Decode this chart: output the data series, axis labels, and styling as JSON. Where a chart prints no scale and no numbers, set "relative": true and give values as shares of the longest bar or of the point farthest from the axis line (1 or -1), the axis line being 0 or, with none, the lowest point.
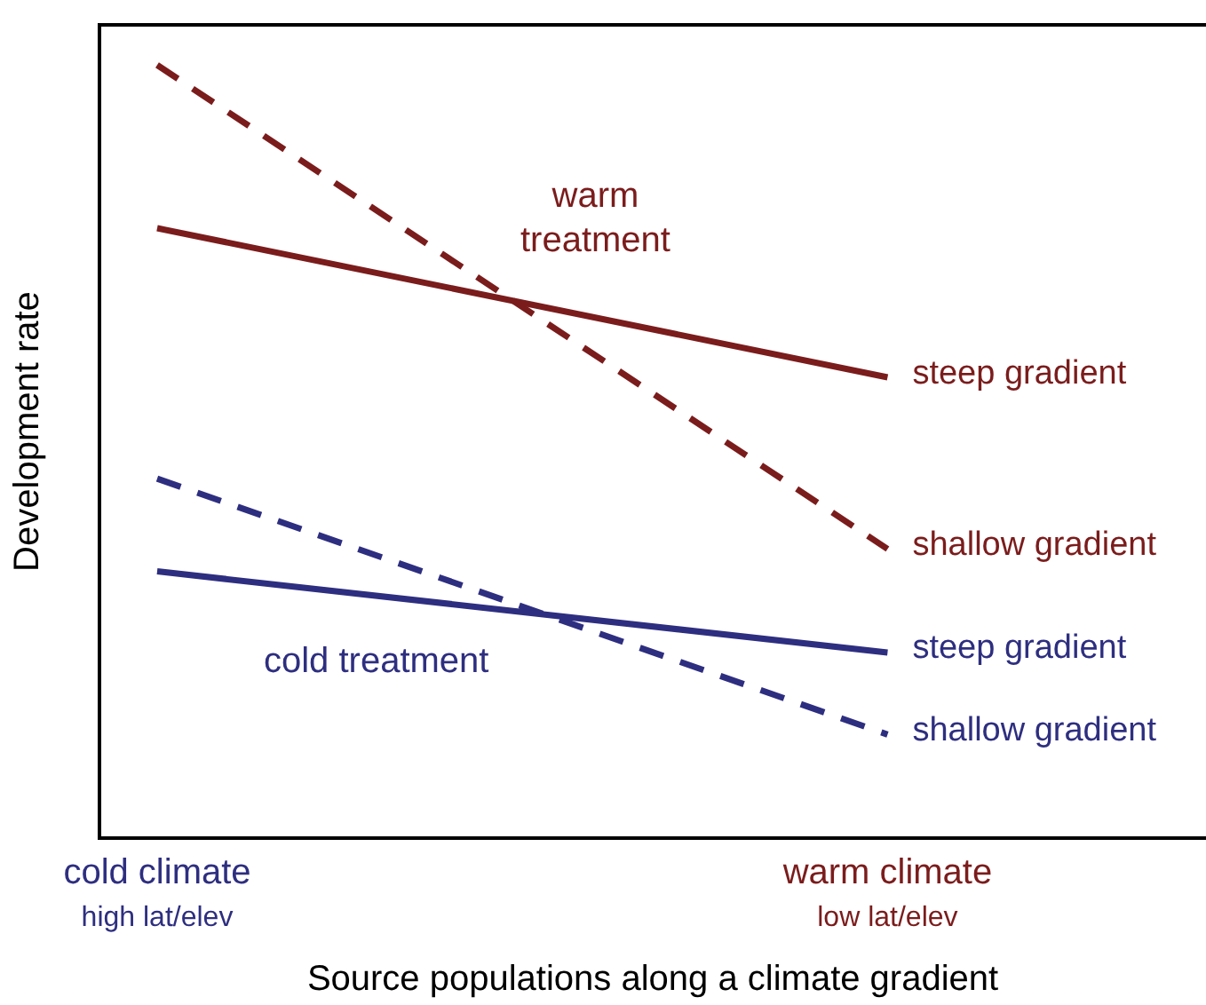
{
  "chart_data": {
    "type": "line",
    "relative": true,
    "xlabel": "Source populations along a climate gradient",
    "ylabel": "Development rate",
    "categories": [
      "cold climate",
      "warm climate"
    ],
    "legend": false,
    "grid": false,
    "marker": "none",
    "series": [
      {
        "name": "steep gradient",
        "color": "#7b1c1c",
        "line_style": "solid",
        "values": [
          0.789,
          0.596
        ]
      },
      {
        "name": "shallow gradient",
        "color": "#7b1c1c",
        "line_style": "dashed",
        "values": [
          1,
          0.374
        ]
      },
      {
        "name": "steep gradient",
        "color": "#2e2e80",
        "line_style": "solid",
        "values": [
          0.345,
          0.24
        ]
      },
      {
        "name": "shallow gradient",
        "color": "#2e2e80",
        "line_style": "dashed",
        "values": [
          0.465,
          0.134
        ]
      }
    ],
    "annotations": [
      "warm treatment",
      "cold treatment",
      "high lat/elev",
      "low lat/elev"
    ]
  }
}
